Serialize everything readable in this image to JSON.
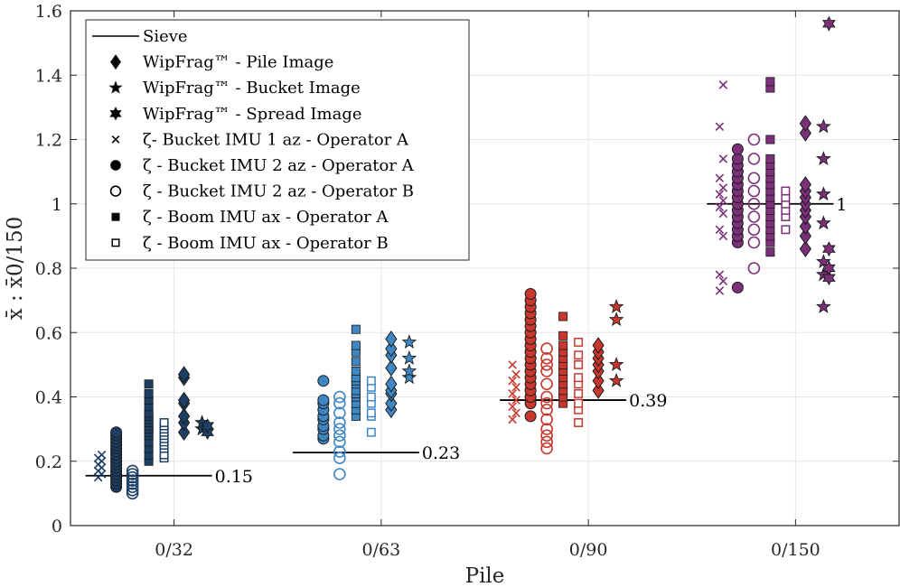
{
  "chart_data": {
    "type": "scatter",
    "title": "",
    "xlabel": "Pile",
    "ylabel": "x̄ : x̄0/150",
    "ylim": [
      0,
      1.6
    ],
    "yticks": [
      0,
      0.2,
      0.4,
      0.6,
      0.8,
      1,
      1.2,
      1.4,
      1.6
    ],
    "ytick_labels": [
      "0",
      "0.2",
      "0.4",
      "0.6",
      "0.8",
      "1",
      "1.2",
      "1.4",
      "1.6"
    ],
    "categories": [
      "0/32",
      "0/63",
      "0/90",
      "0/150"
    ],
    "grid": true,
    "legend_position": "top-left",
    "colors": {
      "0/32": "#1d3f66",
      "0/63": "#3f87c4",
      "0/90": "#c8372d",
      "0/150": "#7b3079"
    },
    "legend": [
      {
        "marker": "line",
        "label": "Sieve"
      },
      {
        "marker": "diamond",
        "label": "WipFrag™ - Pile Image"
      },
      {
        "marker": "star5",
        "label": "WipFrag™ - Bucket Image"
      },
      {
        "marker": "star6",
        "label": "WipFrag™ - Spread Image"
      },
      {
        "marker": "x",
        "label": "ζ- Bucket IMU 1 az - Operator A"
      },
      {
        "marker": "circle-filled",
        "label": "ζ - Bucket IMU 2 az - Operator A"
      },
      {
        "marker": "circle-open",
        "label": "ζ - Bucket IMU 2 az - Operator B"
      },
      {
        "marker": "square-filled",
        "label": "ζ - Boom IMU ax - Operator A"
      },
      {
        "marker": "square-open",
        "label": "ζ - Boom IMU ax - Operator B"
      }
    ],
    "sieve_labels": [
      "0.15",
      "0.23",
      "0.39",
      "1"
    ],
    "piles": [
      {
        "name": "0/32",
        "sieve": 0.155,
        "sieve_label": "0.15",
        "series": {
          "x_bucket1_A": [
            0.15,
            0.16,
            0.17,
            0.18,
            0.19,
            0.2,
            0.21,
            0.22
          ],
          "circle_bucket2_A": [
            0.12,
            0.13,
            0.14,
            0.15,
            0.16,
            0.17,
            0.18,
            0.19,
            0.2,
            0.21,
            0.22,
            0.23,
            0.24,
            0.25,
            0.26,
            0.27,
            0.28,
            0.29
          ],
          "circle_bucket2_B": [
            0.1,
            0.11,
            0.12,
            0.13,
            0.14,
            0.15,
            0.16,
            0.17
          ],
          "square_boom_A": [
            0.2,
            0.22,
            0.24,
            0.26,
            0.28,
            0.29,
            0.3,
            0.31,
            0.32,
            0.33,
            0.34,
            0.35,
            0.37,
            0.39,
            0.41,
            0.44
          ],
          "square_boom_B": [
            0.21,
            0.22,
            0.24,
            0.25,
            0.26,
            0.27,
            0.28,
            0.29,
            0.3,
            0.31,
            0.32
          ],
          "diamond_pile": [
            0.29,
            0.32,
            0.34,
            0.38,
            0.39,
            0.46,
            0.47
          ],
          "star_bucket": [
            0.3,
            0.32
          ],
          "star_spread": [
            0.29,
            0.31
          ]
        }
      },
      {
        "name": "0/63",
        "sieve": 0.227,
        "sieve_label": "0.23",
        "series": {
          "x_bucket1_A": [],
          "circle_bucket2_A": [
            0.27,
            0.28,
            0.3,
            0.31,
            0.33,
            0.34,
            0.36,
            0.38,
            0.39,
            0.45
          ],
          "circle_bucket2_B": [
            0.16,
            0.21,
            0.23,
            0.26,
            0.28,
            0.3,
            0.32,
            0.35,
            0.38,
            0.4
          ],
          "square_boom_A": [
            0.34,
            0.36,
            0.38,
            0.4,
            0.41,
            0.42,
            0.44,
            0.45,
            0.46,
            0.48,
            0.51,
            0.54,
            0.56,
            0.61
          ],
          "square_boom_B": [
            0.29,
            0.34,
            0.35,
            0.38,
            0.4,
            0.43,
            0.45
          ],
          "diamond_pile": [
            0.36,
            0.38,
            0.41,
            0.42,
            0.44,
            0.49,
            0.53,
            0.55,
            0.58
          ],
          "star_bucket": [
            0.46,
            0.48,
            0.52,
            0.57
          ],
          "star_spread": []
        }
      },
      {
        "name": "0/90",
        "sieve": 0.39,
        "sieve_label": "0.39",
        "series": {
          "x_bucket1_A": [
            0.33,
            0.35,
            0.37,
            0.39,
            0.41,
            0.43,
            0.45,
            0.47,
            0.5
          ],
          "circle_bucket2_A": [
            0.34,
            0.38,
            0.4,
            0.42,
            0.44,
            0.46,
            0.48,
            0.5,
            0.52,
            0.54,
            0.56,
            0.58,
            0.6,
            0.62,
            0.64,
            0.66,
            0.68,
            0.7,
            0.72
          ],
          "circle_bucket2_B": [
            0.24,
            0.26,
            0.28,
            0.3,
            0.33,
            0.36,
            0.38,
            0.4,
            0.44,
            0.48,
            0.5,
            0.52,
            0.55
          ],
          "square_boom_A": [
            0.38,
            0.4,
            0.42,
            0.44,
            0.46,
            0.48,
            0.5,
            0.52,
            0.54,
            0.56,
            0.59,
            0.65
          ],
          "square_boom_B": [
            0.32,
            0.36,
            0.38,
            0.41,
            0.44,
            0.46,
            0.5,
            0.53,
            0.57
          ],
          "diamond_pile": [
            0.42,
            0.45,
            0.48,
            0.5,
            0.52,
            0.54,
            0.56
          ],
          "star_bucket": [
            0.45,
            0.5,
            0.64,
            0.68
          ],
          "star_spread": []
        }
      },
      {
        "name": "0/150",
        "sieve": 1.0,
        "sieve_label": "1",
        "series": {
          "x_bucket1_A": [
            0.73,
            0.76,
            0.78,
            0.9,
            0.92,
            0.97,
            0.99,
            1.01,
            1.03,
            1.05,
            1.08,
            1.14,
            1.24,
            1.37
          ],
          "circle_bucket2_A": [
            0.74,
            0.88,
            0.9,
            0.92,
            0.94,
            0.96,
            0.98,
            1.0,
            1.02,
            1.04,
            1.06,
            1.08,
            1.1,
            1.12,
            1.14,
            1.17
          ],
          "circle_bucket2_B": [
            0.8,
            0.88,
            0.92,
            0.96,
            1.0,
            1.04,
            1.08,
            1.14,
            1.2
          ],
          "square_boom_A": [
            0.85,
            0.88,
            0.9,
            0.92,
            0.94,
            0.96,
            0.98,
            1.0,
            1.02,
            1.04,
            1.06,
            1.08,
            1.1,
            1.12,
            1.14,
            1.2,
            1.36,
            1.38
          ],
          "square_boom_B": [
            0.92,
            0.96,
            0.98,
            1.0,
            1.02,
            1.04
          ],
          "diamond_pile": [
            0.86,
            0.9,
            0.93,
            0.96,
            0.98,
            1.0,
            1.02,
            1.04,
            1.06,
            1.22,
            1.25
          ],
          "star_bucket": [
            0.68,
            0.78,
            0.82,
            0.94,
            1.03,
            1.14,
            1.24
          ],
          "star_spread": [
            0.77,
            0.8,
            0.86,
            1.56
          ]
        }
      }
    ]
  }
}
